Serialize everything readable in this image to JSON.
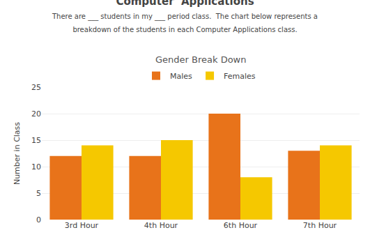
{
  "chart_data": {
    "type": "bar",
    "title": "Computer  Applications",
    "subtitle": [
      "There are ___ students in my ___ period class.  The chart below represents a",
      "breakdown of the students in each Computer Applications class."
    ],
    "annotations": [
      "Gender Break Down"
    ],
    "categories": [
      "3rd Hour",
      "4th Hour",
      "6th Hour",
      "7th Hour"
    ],
    "series": [
      {
        "name": "Males",
        "color": "#E8731A",
        "values": [
          12,
          12,
          20,
          13
        ]
      },
      {
        "name": "Females",
        "color": "#F5C800",
        "values": [
          14,
          15,
          8,
          14
        ]
      }
    ],
    "ylabel": "Number in Class",
    "ylim": [
      0,
      25
    ],
    "yticks": [
      0,
      5,
      10,
      15,
      20,
      25
    ],
    "grid": true,
    "legend": "top"
  }
}
